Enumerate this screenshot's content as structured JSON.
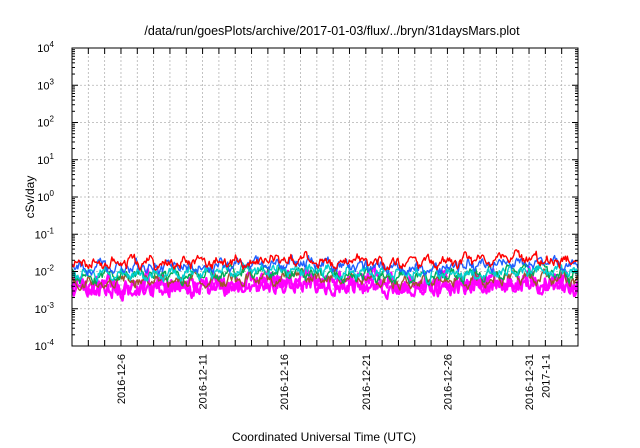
{
  "chart_data": {
    "type": "line",
    "title": "/data/run/goesPlots/archive/2017-01-03/flux/../bryn/31daysMars.plot",
    "xlabel": "Coordinated Universal Time (UTC)",
    "ylabel": "cSv/day",
    "y_scale": "log",
    "grid": true,
    "legend": "none",
    "x_range": [
      "2016-12-03",
      "2017-01-03"
    ],
    "ylim": [
      0.0001,
      10000
    ],
    "y_ticks": [
      {
        "value": 0.0001,
        "base": "10",
        "exp": "-4"
      },
      {
        "value": 0.001,
        "base": "10",
        "exp": "-3"
      },
      {
        "value": 0.01,
        "base": "10",
        "exp": "-2"
      },
      {
        "value": 0.1,
        "base": "10",
        "exp": "-1"
      },
      {
        "value": 1,
        "base": "10",
        "exp": "0"
      },
      {
        "value": 10,
        "base": "10",
        "exp": "1"
      },
      {
        "value": 100,
        "base": "10",
        "exp": "2"
      },
      {
        "value": 1000,
        "base": "10",
        "exp": "3"
      },
      {
        "value": 10000,
        "base": "10",
        "exp": "4"
      }
    ],
    "x_ticks": [
      {
        "date": "2016-12-06",
        "label": "2016-12-6"
      },
      {
        "date": "2016-12-11",
        "label": "2016-12-11"
      },
      {
        "date": "2016-12-16",
        "label": "2016-12-16"
      },
      {
        "date": "2016-12-21",
        "label": "2016-12-21"
      },
      {
        "date": "2016-12-26",
        "label": "2016-12-26"
      },
      {
        "date": "2016-12-31",
        "label": "2016-12-31"
      },
      {
        "date": "2017-01-01",
        "label": "2017-1-1"
      }
    ],
    "series": [
      {
        "color": "#ff00ff",
        "base_y": 0.0042,
        "x": [
          "2016-12-03",
          "2016-12-10",
          "2016-12-17",
          "2016-12-24",
          "2016-12-31",
          "2017-01-03"
        ],
        "y": [
          0.0042,
          0.0045,
          0.006,
          0.004,
          0.006,
          0.0045
        ]
      },
      {
        "color": "#a0522d",
        "base_y": 0.0052,
        "x": [
          "2016-12-03",
          "2016-12-10",
          "2016-12-17",
          "2016-12-24",
          "2016-12-31",
          "2017-01-03"
        ],
        "y": [
          0.0052,
          0.0055,
          0.007,
          0.005,
          0.007,
          0.0055
        ]
      },
      {
        "color": "#00aa55",
        "base_y": 0.0075,
        "x": [
          "2016-12-03",
          "2016-12-10",
          "2016-12-17",
          "2016-12-24",
          "2016-12-31",
          "2017-01-03"
        ],
        "y": [
          0.0075,
          0.008,
          0.01,
          0.007,
          0.01,
          0.008
        ]
      },
      {
        "color": "#00d0d0",
        "base_y": 0.0085,
        "x": [
          "2016-12-03",
          "2016-12-10",
          "2016-12-17",
          "2016-12-24",
          "2016-12-31",
          "2017-01-03"
        ],
        "y": [
          0.0085,
          0.009,
          0.011,
          0.008,
          0.011,
          0.009
        ]
      },
      {
        "color": "#1f5fff",
        "base_y": 0.013,
        "x": [
          "2016-12-03",
          "2016-12-10",
          "2016-12-17",
          "2016-12-24",
          "2016-12-31",
          "2017-01-03"
        ],
        "y": [
          0.013,
          0.013,
          0.017,
          0.012,
          0.018,
          0.013
        ]
      },
      {
        "color": "#ff0000",
        "base_y": 0.017,
        "x": [
          "2016-12-03",
          "2016-12-10",
          "2016-12-17",
          "2016-12-24",
          "2016-12-31",
          "2017-01-03"
        ],
        "y": [
          0.017,
          0.017,
          0.022,
          0.016,
          0.024,
          0.017
        ]
      }
    ]
  }
}
